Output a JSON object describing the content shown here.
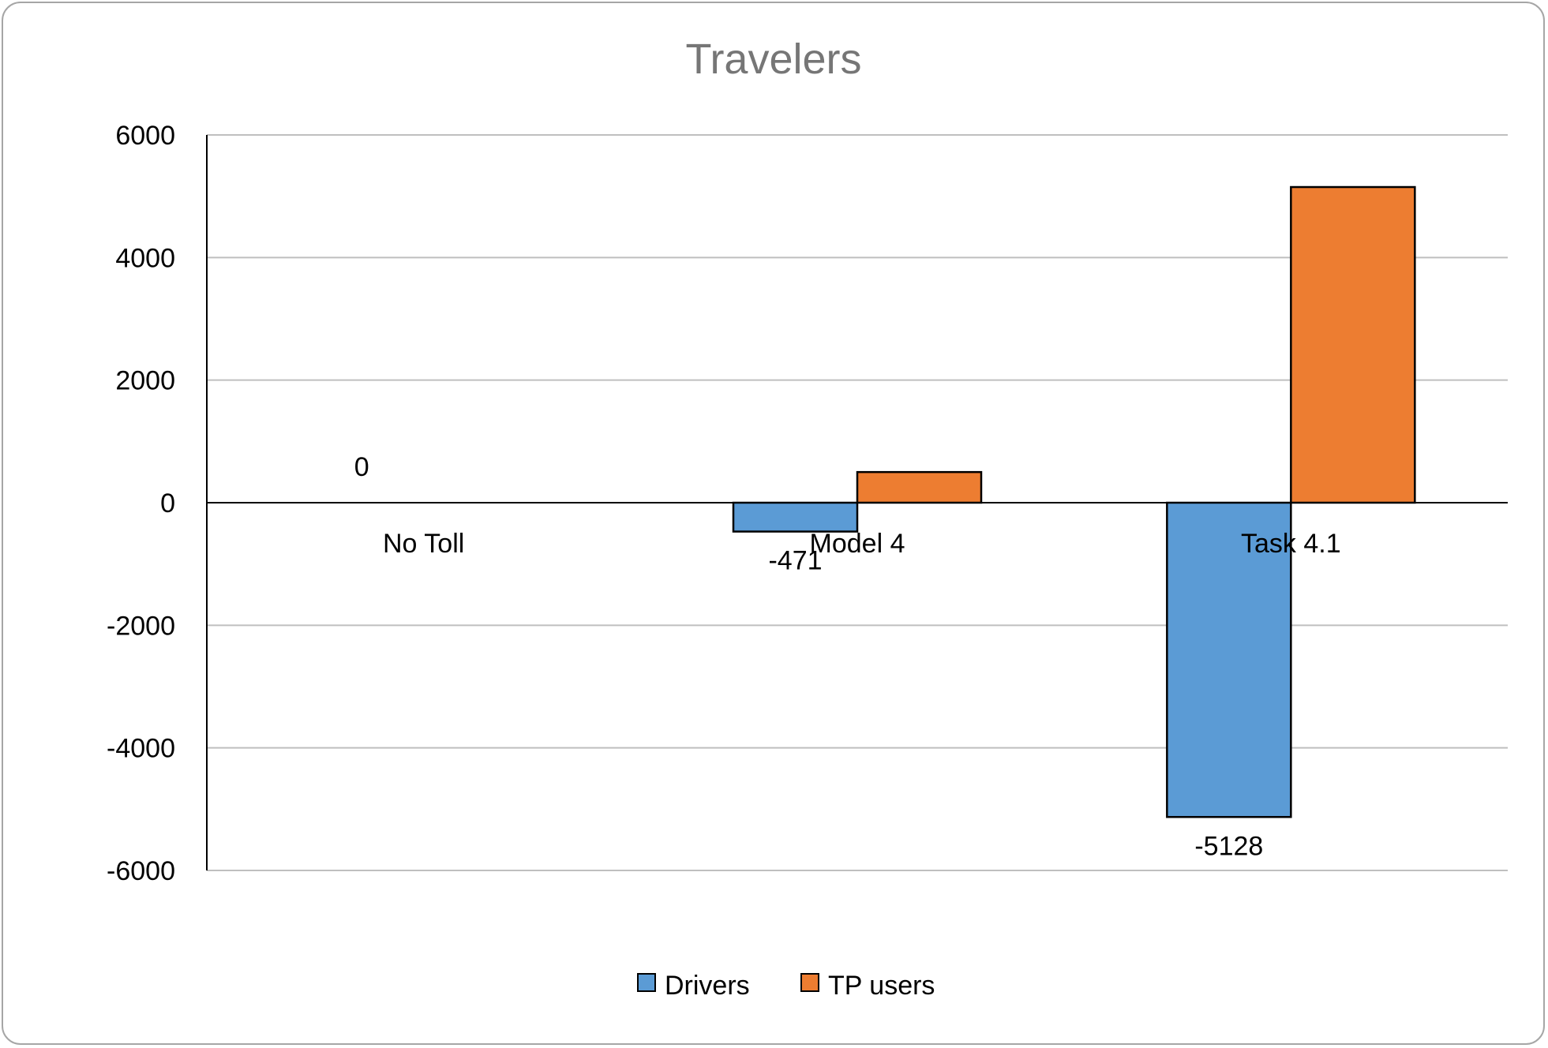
{
  "chart_data": {
    "type": "bar",
    "title": "Travelers",
    "categories": [
      "No Toll",
      "Model 4",
      "Task 4.1"
    ],
    "series": [
      {
        "name": "Drivers",
        "color": "#5b9bd5",
        "values": [
          0,
          -471,
          -5128
        ]
      },
      {
        "name": "TP users",
        "color": "#ed7d31",
        "values": [
          0,
          500,
          5150
        ]
      }
    ],
    "data_labels": [
      {
        "category": "No Toll",
        "series": "Drivers",
        "text": "0"
      },
      {
        "category": "Model 4",
        "series": "Drivers",
        "text": "-471"
      },
      {
        "category": "Task 4.1",
        "series": "Drivers",
        "text": "-5128"
      }
    ],
    "ylim": [
      -6000,
      6000
    ],
    "yticks": [
      "6000",
      "4000",
      "2000",
      "0",
      "-2000",
      "-4000",
      "-6000"
    ],
    "ytick_values": [
      6000,
      4000,
      2000,
      0,
      -2000,
      -4000,
      -6000
    ],
    "grid": true,
    "legend_position": "bottom"
  }
}
